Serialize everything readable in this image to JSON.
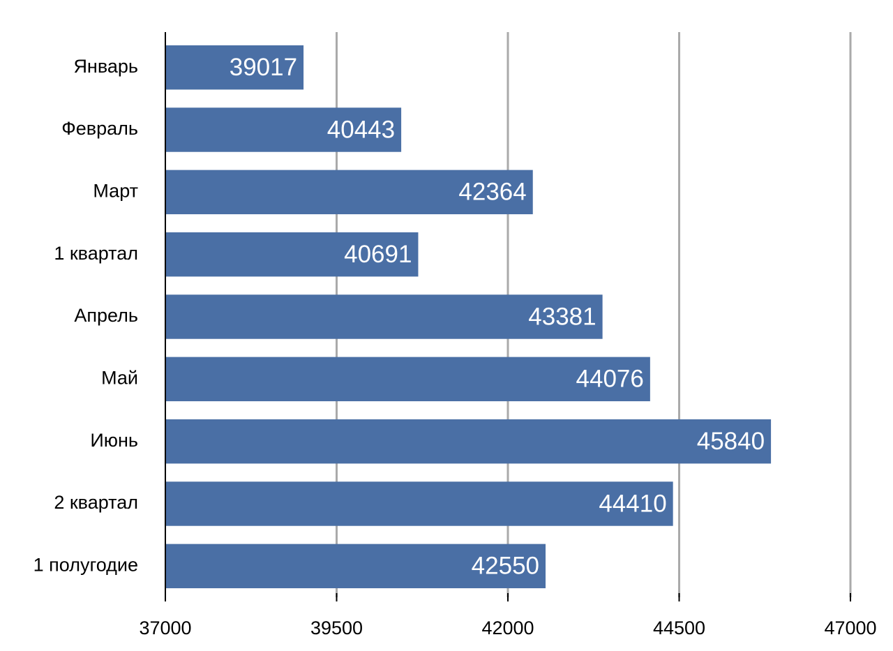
{
  "chart_data": {
    "type": "bar",
    "orientation": "horizontal",
    "categories": [
      "Январь",
      "Февраль",
      "Март",
      "1 квартал",
      "Апрель",
      "Май",
      "Июнь",
      "2 квартал",
      "1 полугодие"
    ],
    "values": [
      39017,
      40443,
      42364,
      40691,
      43381,
      44076,
      45840,
      44410,
      42550
    ],
    "color": "#4a6fa5",
    "xlim": [
      37000,
      47000
    ],
    "xticks": [
      37000,
      39500,
      42000,
      44500,
      47000
    ],
    "grid": true
  }
}
